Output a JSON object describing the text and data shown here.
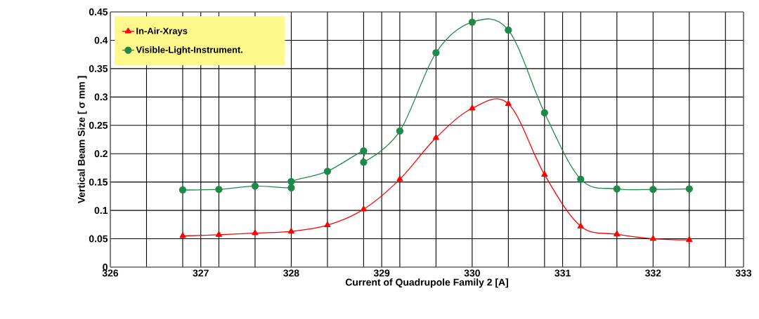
{
  "chart_data": {
    "type": "line",
    "xlabel": "Current of Quadrupole Family 2 [A]",
    "ylabel": "Vertical Beam Size [ σ mm ]",
    "xlim": [
      326,
      333
    ],
    "ylim": [
      0,
      0.45
    ],
    "xticks": [
      326,
      {
        "value": 326.4,
        "label": null
      },
      {
        "value": 326.8,
        "label": null
      },
      327,
      {
        "value": 327.2,
        "label": null
      },
      {
        "value": 327.6,
        "label": null
      },
      328,
      {
        "value": 328.4,
        "label": null
      },
      {
        "value": 328.8,
        "label": null
      },
      329,
      {
        "value": 329.2,
        "label": null
      },
      {
        "value": 329.6,
        "label": null
      },
      330,
      {
        "value": 330.4,
        "label": null
      },
      {
        "value": 330.8,
        "label": null
      },
      331,
      {
        "value": 331.2,
        "label": null
      },
      {
        "value": 331.6,
        "label": null
      },
      332,
      {
        "value": 332.4,
        "label": null
      },
      {
        "value": 332.8,
        "label": null
      },
      333
    ],
    "yticks": [
      0,
      0.05,
      0.1,
      0.15,
      0.2,
      0.25,
      0.3,
      0.35,
      0.4,
      0.45
    ],
    "grid": true,
    "legend": "top left",
    "series": [
      {
        "name": "In-Air-Xrays",
        "color": "#ff0000",
        "marker": "triangle",
        "x": [
          326.8,
          327.2,
          327.6,
          328,
          328.4,
          328.8,
          329.2,
          329.6,
          330,
          330.4,
          330.8,
          331.2,
          331.6,
          332,
          332.4
        ],
        "values": [
          0.055,
          0.057,
          0.06,
          0.063,
          0.074,
          0.102,
          0.155,
          0.228,
          0.28,
          0.288,
          0.163,
          0.072,
          0.058,
          0.05,
          0.048
        ]
      },
      {
        "name": "Visible-Light-Instrument.",
        "color": "#1e8a4a",
        "marker": "circle",
        "x": [
          326.8,
          327.2,
          327.6,
          328,
          328,
          328.4,
          328.8,
          328.8,
          329.2,
          329.6,
          330,
          330.4,
          330.8,
          331.2,
          331.6,
          332,
          332.4
        ],
        "values": [
          0.136,
          0.137,
          0.143,
          0.14,
          0.151,
          0.169,
          0.205,
          0.185,
          0.24,
          0.378,
          0.432,
          0.418,
          0.272,
          0.155,
          0.138,
          0.137,
          0.138
        ]
      }
    ]
  }
}
